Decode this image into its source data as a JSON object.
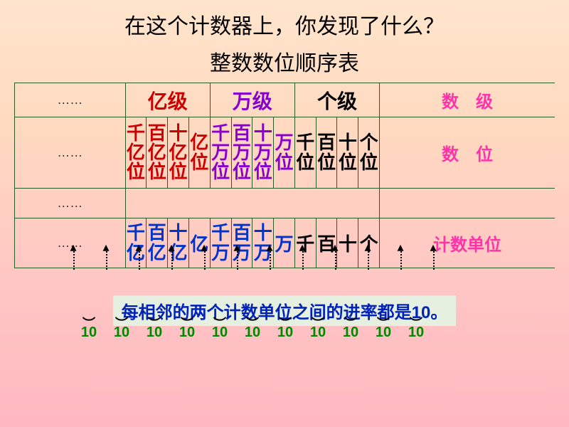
{
  "question": "在这个计数器上，你发现了什么？",
  "subtitle": "整数数位顺序表",
  "ellipsis": "……",
  "row_labels": {
    "level": "数　级",
    "place": "数　位",
    "unit": "计数单位"
  },
  "colors": {
    "level_yi": "#cc0000",
    "level_wan": "#8800cc",
    "level_ge": "#000000",
    "place_yi": "#cc0000",
    "place_wan": "#8800cc",
    "place_ge": "#000000",
    "unit_yi": "#0033cc",
    "unit_wan": "#0033cc",
    "unit_ge": "#000000",
    "label": "#ff33aa",
    "ten": "#008800",
    "conclusion": "#0022bb",
    "conclusion_bg": "#e6f0e0",
    "border": "#2a5c2a"
  },
  "levels": [
    {
      "text": "亿级",
      "span": 4,
      "color": "#cc0000"
    },
    {
      "text": "万级",
      "span": 4,
      "color": "#8800cc"
    },
    {
      "text": "个级",
      "span": 4,
      "color": "#000000"
    }
  ],
  "places": [
    {
      "text": "千亿位",
      "color": "#cc0000"
    },
    {
      "text": "百亿位",
      "color": "#cc0000"
    },
    {
      "text": "十亿位",
      "color": "#cc0000"
    },
    {
      "text": "亿位",
      "color": "#cc0000"
    },
    {
      "text": "千万位",
      "color": "#8800cc"
    },
    {
      "text": "百万位",
      "color": "#8800cc"
    },
    {
      "text": "十万位",
      "color": "#8800cc"
    },
    {
      "text": "万位",
      "color": "#8800cc"
    },
    {
      "text": "千位",
      "color": "#000000"
    },
    {
      "text": "百位",
      "color": "#000000"
    },
    {
      "text": "十位",
      "color": "#000000"
    },
    {
      "text": "个位",
      "color": "#000000"
    }
  ],
  "units": [
    {
      "text": "千亿",
      "color": "#0033cc"
    },
    {
      "text": "百亿",
      "color": "#0033cc"
    },
    {
      "text": "十亿",
      "color": "#0033cc"
    },
    {
      "text": "亿",
      "color": "#0033cc"
    },
    {
      "text": "千万",
      "color": "#0033cc"
    },
    {
      "text": "百万",
      "color": "#0033cc"
    },
    {
      "text": "十万",
      "color": "#0033cc"
    },
    {
      "text": "万",
      "color": "#0033cc"
    },
    {
      "text": "千",
      "color": "#000000"
    },
    {
      "text": "百",
      "color": "#000000"
    },
    {
      "text": "十",
      "color": "#000000"
    },
    {
      "text": "个",
      "color": "#000000"
    }
  ],
  "ten_label": "10",
  "ten_count": 11,
  "conclusion": "每相邻的两个计数单位之间的进率都是10。",
  "typography": {
    "title_fontsize": 30,
    "cell_fontsize": 26,
    "label_fontsize": 24,
    "ten_fontsize": 20,
    "conclusion_fontsize": 24
  }
}
